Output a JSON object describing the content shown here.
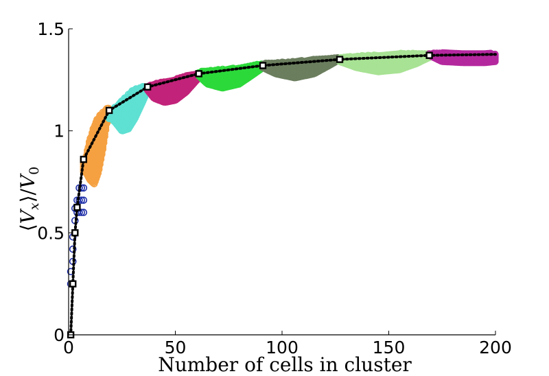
{
  "chart_data": {
    "type": "scatter",
    "title": "",
    "xlabel": "Number of cells in cluster",
    "ylabel": "⟨V_x⟩/V_0",
    "ylabel_parts": {
      "open": "⟨",
      "v": "V",
      "x": "x",
      "close": "⟩/",
      "v0": "V",
      "zero": "0"
    },
    "xlim": [
      0,
      200
    ],
    "ylim": [
      0,
      1.5
    ],
    "xticks": [
      0,
      50,
      100,
      150,
      200
    ],
    "xtick_labels": [
      "0",
      "50",
      "100",
      "150",
      "200"
    ],
    "yticks": [
      0,
      0.5,
      1,
      1.5
    ],
    "ytick_labels": [
      "0",
      "0.5",
      "1",
      "1.5"
    ],
    "grid": false,
    "legend": "none",
    "line_color": "#000000",
    "clusters": [
      {
        "x_range": [
          1,
          7
        ],
        "upper": [
          [
            1,
            0.25
          ],
          [
            2,
            0.5
          ],
          [
            3,
            0.63
          ],
          [
            4,
            0.7
          ],
          [
            5,
            0.76
          ]
        ],
        "lower": [
          [
            1,
            0.33
          ],
          [
            2,
            0.36
          ],
          [
            3,
            0.5
          ],
          [
            4,
            0.6
          ],
          [
            5,
            0.6
          ]
        ],
        "color": "#1f2fa8",
        "style": "sparse"
      },
      {
        "x_range": [
          7,
          19
        ],
        "upper": [
          [
            8,
            0.87
          ],
          [
            10,
            0.96
          ],
          [
            12,
            1.03
          ],
          [
            14,
            1.07
          ],
          [
            16,
            1.09
          ],
          [
            18,
            1.11
          ]
        ],
        "lower": [
          [
            8,
            0.8
          ],
          [
            10,
            0.76
          ],
          [
            12,
            0.74
          ],
          [
            14,
            0.8
          ],
          [
            16,
            0.91
          ],
          [
            18,
            1.05
          ]
        ],
        "color": "#f5a142",
        "style": "ring"
      },
      {
        "x_range": [
          19,
          37
        ],
        "upper": [
          [
            20,
            1.1
          ],
          [
            25,
            1.15
          ],
          [
            30,
            1.2
          ],
          [
            35,
            1.22
          ],
          [
            37,
            1.21
          ]
        ],
        "lower": [
          [
            20,
            1.06
          ],
          [
            22,
            1.04
          ],
          [
            25,
            1.0
          ],
          [
            28,
            1.01
          ],
          [
            31,
            1.06
          ],
          [
            35,
            1.15
          ],
          [
            37,
            1.2
          ]
        ],
        "color": "#5ee0d2",
        "style": "ring"
      },
      {
        "x_range": [
          37,
          61
        ],
        "upper": [
          [
            37,
            1.22
          ],
          [
            43,
            1.24
          ],
          [
            49,
            1.25
          ],
          [
            55,
            1.27
          ],
          [
            61,
            1.28
          ]
        ],
        "lower": [
          [
            37,
            1.2
          ],
          [
            40,
            1.16
          ],
          [
            45,
            1.14
          ],
          [
            50,
            1.15
          ],
          [
            55,
            1.19
          ],
          [
            61,
            1.26
          ]
        ],
        "color": "#c2237a",
        "style": "dense"
      },
      {
        "x_range": [
          61,
          91
        ],
        "upper": [
          [
            61,
            1.29
          ],
          [
            70,
            1.3
          ],
          [
            80,
            1.31
          ],
          [
            91,
            1.33
          ]
        ],
        "lower": [
          [
            61,
            1.27
          ],
          [
            65,
            1.23
          ],
          [
            72,
            1.21
          ],
          [
            80,
            1.23
          ],
          [
            87,
            1.28
          ],
          [
            91,
            1.31
          ]
        ],
        "color": "#2cd93a",
        "style": "dense"
      },
      {
        "x_range": [
          91,
          127
        ],
        "upper": [
          [
            91,
            1.33
          ],
          [
            105,
            1.34
          ],
          [
            115,
            1.35
          ],
          [
            127,
            1.36
          ]
        ],
        "lower": [
          [
            91,
            1.31
          ],
          [
            97,
            1.28
          ],
          [
            106,
            1.26
          ],
          [
            115,
            1.28
          ],
          [
            122,
            1.32
          ],
          [
            127,
            1.35
          ]
        ],
        "color": "#6b7e5e",
        "style": "dense"
      },
      {
        "x_range": [
          127,
          169
        ],
        "upper": [
          [
            127,
            1.36
          ],
          [
            140,
            1.37
          ],
          [
            155,
            1.38
          ],
          [
            169,
            1.38
          ]
        ],
        "lower": [
          [
            127,
            1.34
          ],
          [
            135,
            1.31
          ],
          [
            145,
            1.29
          ],
          [
            155,
            1.3
          ],
          [
            163,
            1.33
          ],
          [
            169,
            1.36
          ]
        ],
        "color": "#a8e294",
        "style": "dense"
      },
      {
        "x_range": [
          169,
          200
        ],
        "upper": [
          [
            169,
            1.38
          ],
          [
            180,
            1.385
          ],
          [
            190,
            1.38
          ],
          [
            200,
            1.38
          ]
        ],
        "lower": [
          [
            169,
            1.37
          ],
          [
            175,
            1.34
          ],
          [
            185,
            1.335
          ],
          [
            195,
            1.335
          ],
          [
            200,
            1.34
          ]
        ],
        "color": "#b4289e",
        "style": "dense"
      }
    ],
    "mean_line": {
      "x": [
        1,
        2,
        3,
        4,
        7,
        19,
        37,
        61,
        91,
        127,
        169,
        200
      ],
      "y": [
        0,
        0.25,
        0.5,
        0.625,
        0.86,
        1.1,
        1.215,
        1.28,
        1.32,
        1.35,
        1.37,
        1.375
      ],
      "markers_x": [
        1,
        2,
        3,
        4,
        7,
        19,
        37,
        61,
        91,
        127,
        169
      ],
      "markers_y": [
        0,
        0.25,
        0.5,
        0.625,
        0.86,
        1.1,
        1.215,
        1.28,
        1.32,
        1.35,
        1.37
      ]
    }
  }
}
